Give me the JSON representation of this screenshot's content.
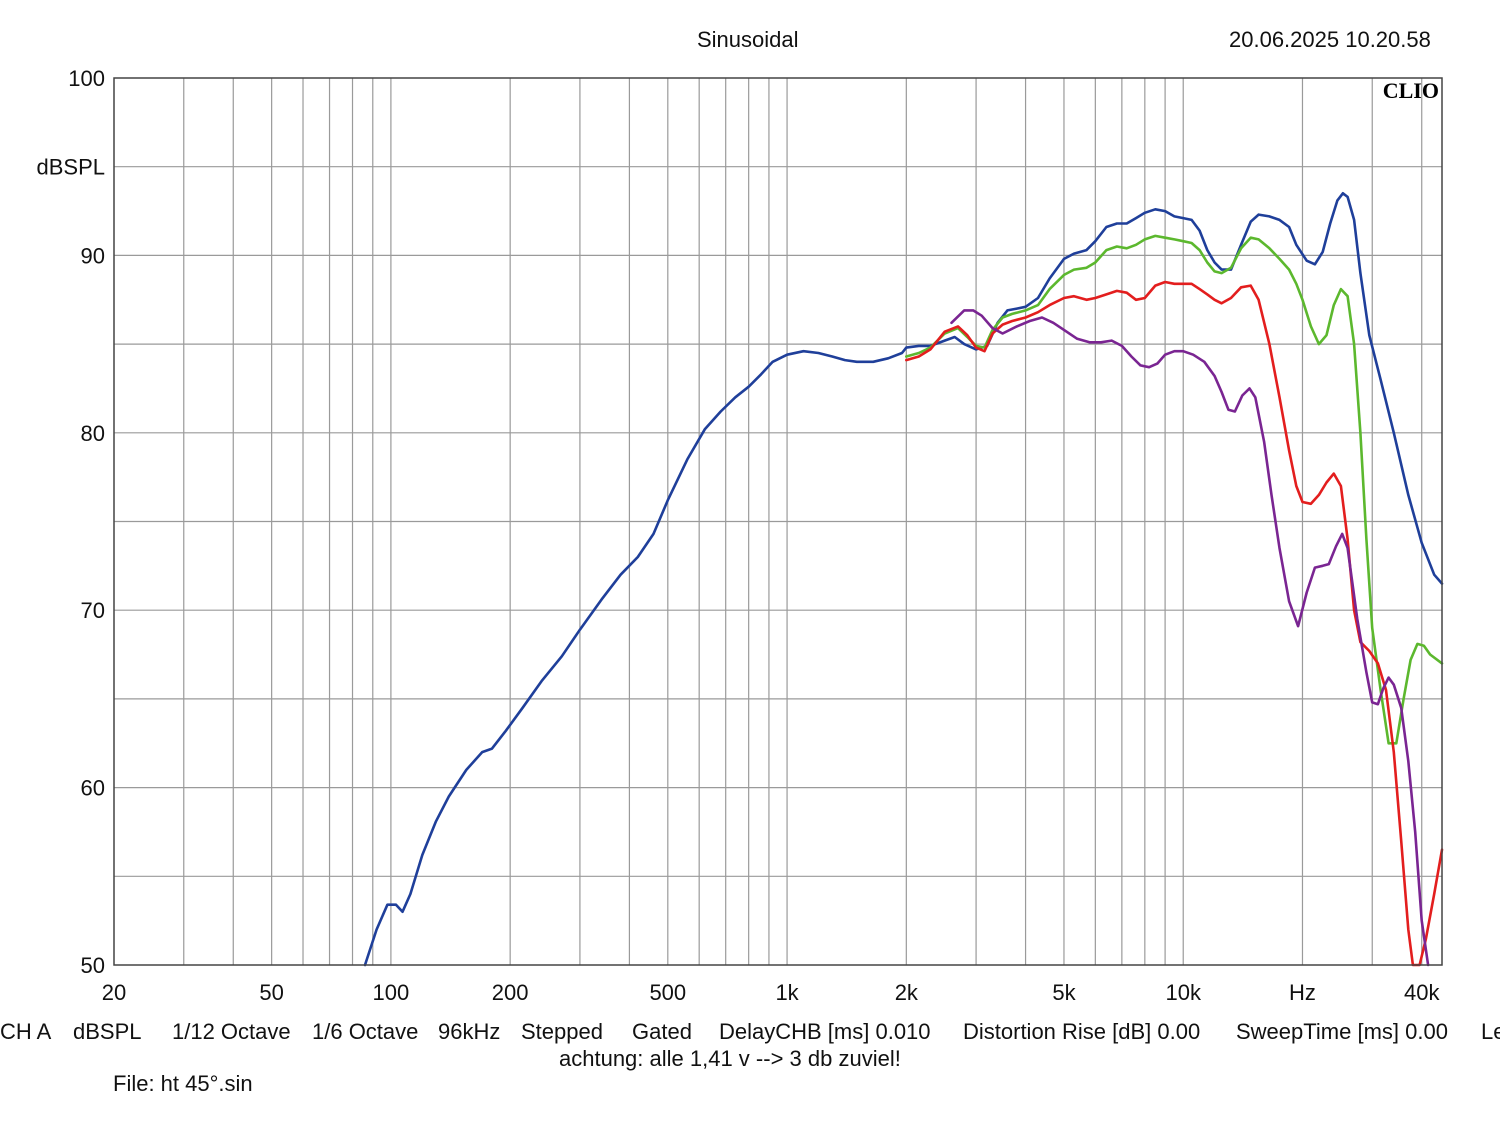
{
  "header": {
    "title": "Sinusoidal",
    "timestamp": "20.06.2025 10.20.58",
    "logo": "CLIO"
  },
  "status_bar": {
    "items": [
      "CH A",
      "dBSPL",
      "1/12 Octave",
      "1/6 Octave",
      "96kHz",
      "Stepped",
      "Gated",
      "DelayCHB [ms] 0.010",
      "Distortion Rise [dB] 0.00",
      "SweepTime [ms] 0.00",
      "Le"
    ],
    "note": "achtung: alle 1,41 v --> 3 db zuviel!",
    "file": "File: ht 45°.sin"
  },
  "chart_data": {
    "type": "line",
    "xscale": "log",
    "xlim": [
      20,
      45000
    ],
    "ylim": [
      50,
      100
    ],
    "ylabel": "dBSPL",
    "xlabel": "Hz",
    "x_ticks": [
      {
        "value": 20,
        "label": "20"
      },
      {
        "value": 50,
        "label": "50"
      },
      {
        "value": 100,
        "label": "100"
      },
      {
        "value": 200,
        "label": "200"
      },
      {
        "value": 500,
        "label": "500"
      },
      {
        "value": 1000,
        "label": "1k"
      },
      {
        "value": 2000,
        "label": "2k"
      },
      {
        "value": 5000,
        "label": "5k"
      },
      {
        "value": 10000,
        "label": "10k"
      },
      {
        "value": 20000,
        "label": "Hz"
      },
      {
        "value": 40000,
        "label": "40k"
      }
    ],
    "y_ticks": [
      {
        "value": 100,
        "label": "100"
      },
      {
        "value": 90,
        "label": "90"
      },
      {
        "value": 80,
        "label": "80"
      },
      {
        "value": 70,
        "label": "70"
      },
      {
        "value": 60,
        "label": "60"
      },
      {
        "value": 50,
        "label": "50"
      }
    ],
    "grid": true,
    "series": [
      {
        "color": "#1f3f9a",
        "points": [
          [
            86,
            50
          ],
          [
            92,
            52
          ],
          [
            98,
            53.4
          ],
          [
            103,
            53.4
          ],
          [
            107,
            53
          ],
          [
            112,
            54
          ],
          [
            120,
            56.2
          ],
          [
            130,
            58.1
          ],
          [
            140,
            59.5
          ],
          [
            155,
            61
          ],
          [
            170,
            62
          ],
          [
            180,
            62.2
          ],
          [
            195,
            63.2
          ],
          [
            215,
            64.5
          ],
          [
            240,
            66
          ],
          [
            270,
            67.4
          ],
          [
            300,
            68.9
          ],
          [
            340,
            70.6
          ],
          [
            380,
            72
          ],
          [
            420,
            73
          ],
          [
            460,
            74.3
          ],
          [
            500,
            76.2
          ],
          [
            560,
            78.5
          ],
          [
            620,
            80.2
          ],
          [
            680,
            81.2
          ],
          [
            740,
            82
          ],
          [
            800,
            82.6
          ],
          [
            860,
            83.3
          ],
          [
            920,
            84
          ],
          [
            1000,
            84.4
          ],
          [
            1100,
            84.6
          ],
          [
            1200,
            84.5
          ],
          [
            1300,
            84.3
          ],
          [
            1400,
            84.1
          ],
          [
            1500,
            84.0
          ],
          [
            1650,
            84.0
          ],
          [
            1800,
            84.2
          ],
          [
            1950,
            84.5
          ],
          [
            2000,
            84.8
          ],
          [
            2150,
            84.9
          ],
          [
            2300,
            84.9
          ],
          [
            2500,
            85.2
          ],
          [
            2650,
            85.4
          ],
          [
            2800,
            85.0
          ],
          [
            3000,
            84.7
          ],
          [
            3200,
            84.9
          ],
          [
            3400,
            86.2
          ],
          [
            3600,
            86.9
          ],
          [
            3800,
            87
          ],
          [
            4000,
            87.1
          ],
          [
            4300,
            87.6
          ],
          [
            4600,
            88.7
          ],
          [
            5000,
            89.8
          ],
          [
            5300,
            90.1
          ],
          [
            5700,
            90.3
          ],
          [
            6000,
            90.8
          ],
          [
            6400,
            91.6
          ],
          [
            6800,
            91.8
          ],
          [
            7200,
            91.8
          ],
          [
            7600,
            92.1
          ],
          [
            8000,
            92.4
          ],
          [
            8500,
            92.6
          ],
          [
            9000,
            92.5
          ],
          [
            9500,
            92.2
          ],
          [
            10000,
            92.1
          ],
          [
            10500,
            92.0
          ],
          [
            11000,
            91.4
          ],
          [
            11500,
            90.3
          ],
          [
            12000,
            89.6
          ],
          [
            12500,
            89.2
          ],
          [
            13200,
            89.2
          ],
          [
            14000,
            90.6
          ],
          [
            14800,
            91.9
          ],
          [
            15500,
            92.3
          ],
          [
            16500,
            92.2
          ],
          [
            17500,
            92
          ],
          [
            18500,
            91.6
          ],
          [
            19300,
            90.6
          ],
          [
            20500,
            89.7
          ],
          [
            21500,
            89.5
          ],
          [
            22500,
            90.2
          ],
          [
            23500,
            91.8
          ],
          [
            24500,
            93.1
          ],
          [
            25300,
            93.5
          ],
          [
            26000,
            93.3
          ],
          [
            27000,
            92
          ],
          [
            28000,
            89
          ],
          [
            29500,
            85.5
          ],
          [
            31500,
            83
          ],
          [
            34000,
            80
          ],
          [
            37000,
            76.5
          ],
          [
            40000,
            73.8
          ],
          [
            43000,
            72
          ],
          [
            45000,
            71.5
          ]
        ]
      },
      {
        "color": "#5cb82e",
        "points": [
          [
            2000,
            84.3
          ],
          [
            2150,
            84.5
          ],
          [
            2300,
            84.8
          ],
          [
            2500,
            85.6
          ],
          [
            2700,
            85.9
          ],
          [
            2850,
            85.4
          ],
          [
            3000,
            84.9
          ],
          [
            3150,
            84.8
          ],
          [
            3300,
            85.8
          ],
          [
            3500,
            86.5
          ],
          [
            3700,
            86.7
          ],
          [
            4000,
            86.9
          ],
          [
            4300,
            87.2
          ],
          [
            4600,
            88.1
          ],
          [
            5000,
            88.9
          ],
          [
            5300,
            89.2
          ],
          [
            5700,
            89.3
          ],
          [
            6000,
            89.6
          ],
          [
            6400,
            90.3
          ],
          [
            6800,
            90.5
          ],
          [
            7200,
            90.4
          ],
          [
            7600,
            90.6
          ],
          [
            8000,
            90.9
          ],
          [
            8500,
            91.1
          ],
          [
            9000,
            91.0
          ],
          [
            9500,
            90.9
          ],
          [
            10000,
            90.8
          ],
          [
            10500,
            90.7
          ],
          [
            11000,
            90.3
          ],
          [
            11500,
            89.6
          ],
          [
            12000,
            89.1
          ],
          [
            12500,
            89
          ],
          [
            13200,
            89.3
          ],
          [
            14000,
            90.4
          ],
          [
            14800,
            91
          ],
          [
            15500,
            90.9
          ],
          [
            16500,
            90.4
          ],
          [
            17500,
            89.8
          ],
          [
            18500,
            89.2
          ],
          [
            19300,
            88.4
          ],
          [
            20000,
            87.5
          ],
          [
            21000,
            86.0
          ],
          [
            22000,
            85
          ],
          [
            23000,
            85.5
          ],
          [
            24000,
            87.2
          ],
          [
            25000,
            88.1
          ],
          [
            26000,
            87.7
          ],
          [
            27000,
            85
          ],
          [
            28000,
            80
          ],
          [
            29000,
            74
          ],
          [
            30000,
            69
          ],
          [
            31500,
            65.5
          ],
          [
            33000,
            62.5
          ],
          [
            34500,
            62.5
          ],
          [
            36000,
            65
          ],
          [
            37500,
            67.2
          ],
          [
            39000,
            68.1
          ],
          [
            40500,
            68
          ],
          [
            42000,
            67.5
          ],
          [
            45000,
            67
          ]
        ]
      },
      {
        "color": "#e31e1e",
        "points": [
          [
            2000,
            84.1
          ],
          [
            2150,
            84.3
          ],
          [
            2300,
            84.7
          ],
          [
            2500,
            85.7
          ],
          [
            2700,
            86.0
          ],
          [
            2850,
            85.5
          ],
          [
            3000,
            84.8
          ],
          [
            3150,
            84.6
          ],
          [
            3300,
            85.6
          ],
          [
            3500,
            86.1
          ],
          [
            3700,
            86.3
          ],
          [
            4000,
            86.5
          ],
          [
            4300,
            86.8
          ],
          [
            4600,
            87.2
          ],
          [
            5000,
            87.6
          ],
          [
            5300,
            87.7
          ],
          [
            5700,
            87.5
          ],
          [
            6000,
            87.6
          ],
          [
            6400,
            87.8
          ],
          [
            6800,
            88
          ],
          [
            7200,
            87.9
          ],
          [
            7600,
            87.5
          ],
          [
            8000,
            87.6
          ],
          [
            8500,
            88.3
          ],
          [
            9000,
            88.5
          ],
          [
            9500,
            88.4
          ],
          [
            10000,
            88.4
          ],
          [
            10500,
            88.4
          ],
          [
            11000,
            88.1
          ],
          [
            11500,
            87.8
          ],
          [
            12000,
            87.5
          ],
          [
            12500,
            87.3
          ],
          [
            13200,
            87.6
          ],
          [
            14000,
            88.2
          ],
          [
            14800,
            88.3
          ],
          [
            15500,
            87.5
          ],
          [
            16500,
            85
          ],
          [
            17500,
            82
          ],
          [
            18500,
            79
          ],
          [
            19300,
            77
          ],
          [
            20000,
            76.1
          ],
          [
            21000,
            76.0
          ],
          [
            22000,
            76.5
          ],
          [
            23000,
            77.2
          ],
          [
            24000,
            77.7
          ],
          [
            25000,
            77
          ],
          [
            26000,
            74
          ],
          [
            27000,
            70
          ],
          [
            28000,
            68.2
          ],
          [
            29500,
            67.7
          ],
          [
            31000,
            67
          ],
          [
            32500,
            65.5
          ],
          [
            34000,
            62
          ],
          [
            35500,
            57
          ],
          [
            37000,
            52
          ],
          [
            38000,
            50
          ],
          [
            39500,
            50
          ],
          [
            41000,
            51.5
          ],
          [
            43000,
            54
          ],
          [
            45000,
            56.5
          ]
        ]
      },
      {
        "color": "#7a2592",
        "points": [
          [
            2600,
            86.2
          ],
          [
            2800,
            86.9
          ],
          [
            2950,
            86.9
          ],
          [
            3100,
            86.6
          ],
          [
            3300,
            85.9
          ],
          [
            3500,
            85.6
          ],
          [
            3800,
            86.0
          ],
          [
            4100,
            86.3
          ],
          [
            4400,
            86.5
          ],
          [
            4700,
            86.2
          ],
          [
            5000,
            85.8
          ],
          [
            5400,
            85.3
          ],
          [
            5800,
            85.1
          ],
          [
            6200,
            85.1
          ],
          [
            6600,
            85.2
          ],
          [
            7000,
            84.9
          ],
          [
            7400,
            84.3
          ],
          [
            7800,
            83.8
          ],
          [
            8200,
            83.7
          ],
          [
            8600,
            83.9
          ],
          [
            9000,
            84.4
          ],
          [
            9500,
            84.6
          ],
          [
            10000,
            84.6
          ],
          [
            10600,
            84.4
          ],
          [
            11300,
            84
          ],
          [
            12000,
            83.2
          ],
          [
            12500,
            82.3
          ],
          [
            13000,
            81.3
          ],
          [
            13500,
            81.2
          ],
          [
            14100,
            82.1
          ],
          [
            14700,
            82.5
          ],
          [
            15200,
            82.0
          ],
          [
            16000,
            79.5
          ],
          [
            16700,
            76.5
          ],
          [
            17500,
            73.5
          ],
          [
            18500,
            70.5
          ],
          [
            19500,
            69.1
          ],
          [
            20500,
            71
          ],
          [
            21500,
            72.4
          ],
          [
            22500,
            72.5
          ],
          [
            23300,
            72.6
          ],
          [
            24300,
            73.6
          ],
          [
            25200,
            74.3
          ],
          [
            26000,
            73.5
          ],
          [
            27500,
            69.5
          ],
          [
            29000,
            66.5
          ],
          [
            30000,
            64.8
          ],
          [
            31000,
            64.7
          ],
          [
            32000,
            65.6
          ],
          [
            33000,
            66.2
          ],
          [
            34000,
            65.8
          ],
          [
            35500,
            64.5
          ],
          [
            37000,
            61.5
          ],
          [
            38500,
            57.5
          ],
          [
            40000,
            52.5
          ],
          [
            41500,
            50
          ]
        ]
      }
    ]
  }
}
